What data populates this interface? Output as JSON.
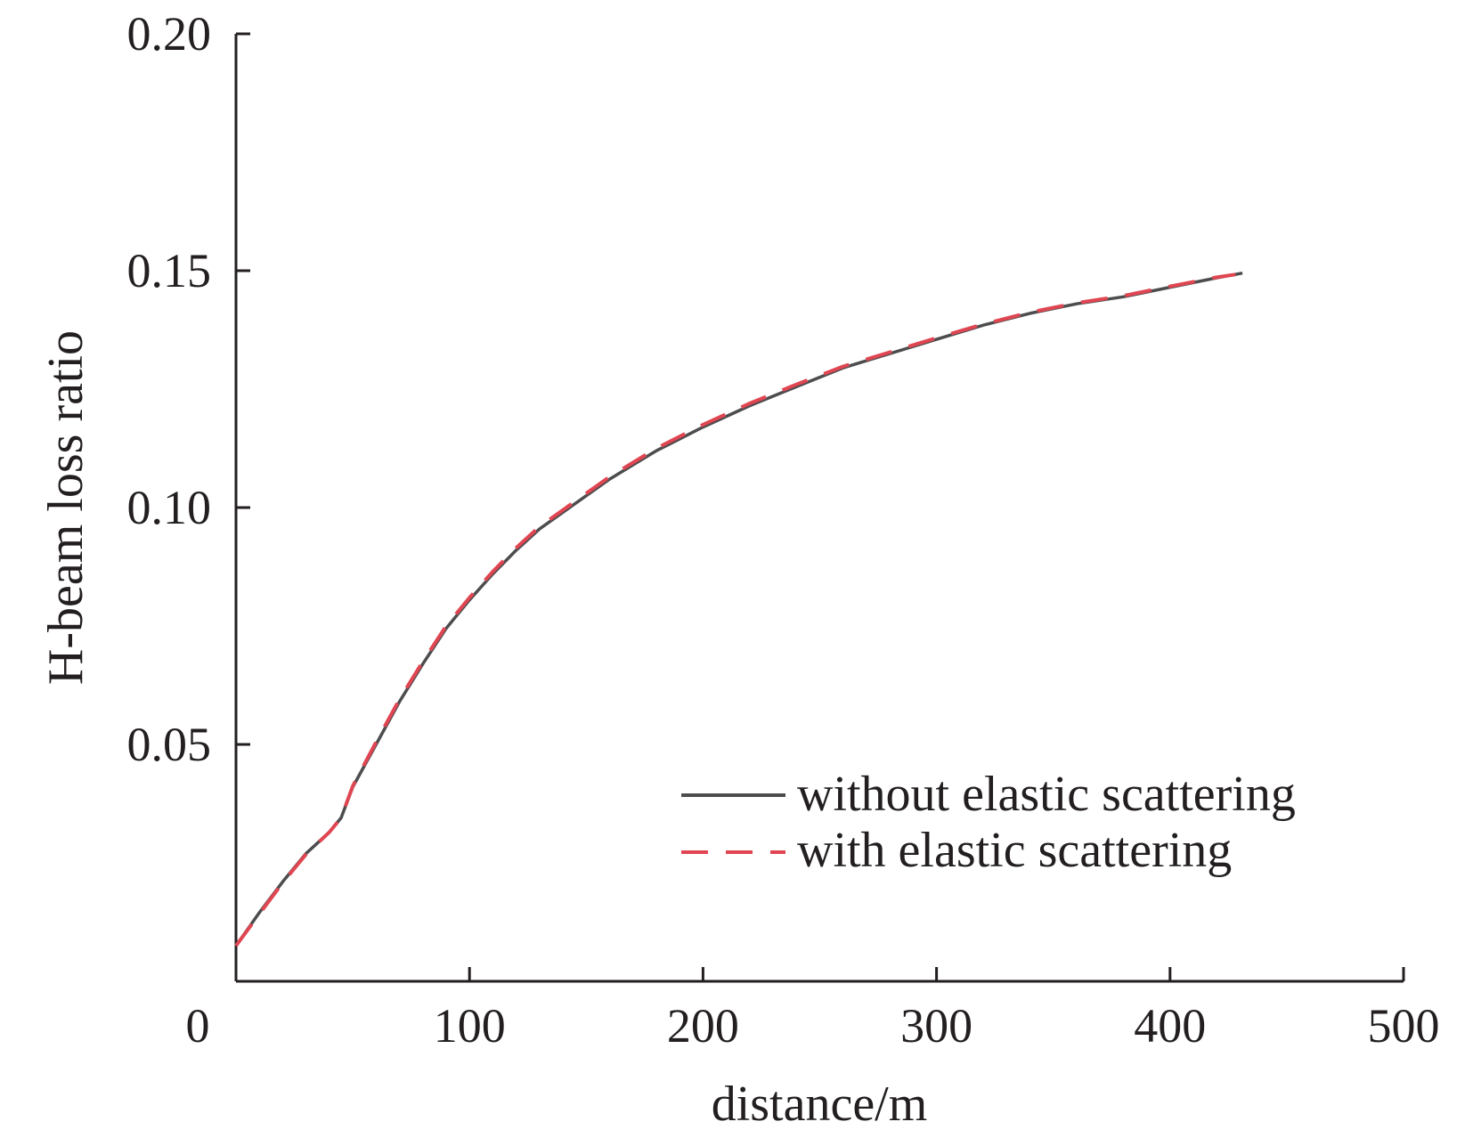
{
  "chart_data": {
    "type": "line",
    "title": "",
    "xlabel": "distance/m",
    "ylabel": "H-beam loss ratio",
    "xlim": [
      0,
      500
    ],
    "ylim": [
      0,
      0.2
    ],
    "x_ticks": [
      0,
      100,
      200,
      300,
      400,
      500
    ],
    "x_tick_labels": [
      "0",
      "100",
      "200",
      "300",
      "400",
      "500"
    ],
    "y_ticks": [
      0.05,
      0.1,
      0.15,
      0.2
    ],
    "y_tick_labels": [
      "0.05",
      "0.10",
      "0.15",
      "0.20"
    ],
    "grid": false,
    "legend_position": "bottom-right",
    "series": [
      {
        "name": "without elastic scattering",
        "color": "#4d4d4f",
        "style": "solid",
        "x": [
          0,
          10,
          20,
          30,
          40,
          45,
          50,
          60,
          70,
          80,
          90,
          100,
          110,
          120,
          130,
          140,
          150,
          160,
          170,
          180,
          190,
          200,
          220,
          240,
          260,
          280,
          300,
          320,
          340,
          360,
          380,
          400,
          420,
          431
        ],
        "y": [
          0.0075,
          0.0145,
          0.021,
          0.027,
          0.0315,
          0.0345,
          0.041,
          0.05,
          0.059,
          0.067,
          0.0745,
          0.0805,
          0.086,
          0.091,
          0.0955,
          0.099,
          0.1025,
          0.106,
          0.109,
          0.112,
          0.1145,
          0.117,
          0.1215,
          0.1255,
          0.1295,
          0.1325,
          0.1355,
          0.1385,
          0.141,
          0.143,
          0.1445,
          0.1465,
          0.1485,
          0.1495
        ]
      },
      {
        "name": "with elastic scattering",
        "color": "#e04652",
        "style": "dashed",
        "x": [
          0,
          10,
          20,
          30,
          40,
          45,
          50,
          60,
          70,
          80,
          90,
          100,
          110,
          120,
          130,
          140,
          150,
          160,
          170,
          180,
          190,
          200,
          220,
          240,
          260,
          280,
          300,
          320,
          340,
          360,
          380,
          400,
          420,
          428
        ],
        "y": [
          0.0075,
          0.0142,
          0.0208,
          0.0268,
          0.0315,
          0.0345,
          0.0412,
          0.0505,
          0.0595,
          0.0675,
          0.075,
          0.081,
          0.0865,
          0.0915,
          0.096,
          0.0995,
          0.103,
          0.1065,
          0.1095,
          0.1125,
          0.115,
          0.1175,
          0.122,
          0.126,
          0.1298,
          0.1328,
          0.1358,
          0.1387,
          0.1412,
          0.1432,
          0.1447,
          0.1467,
          0.1486,
          0.1492
        ]
      }
    ]
  }
}
